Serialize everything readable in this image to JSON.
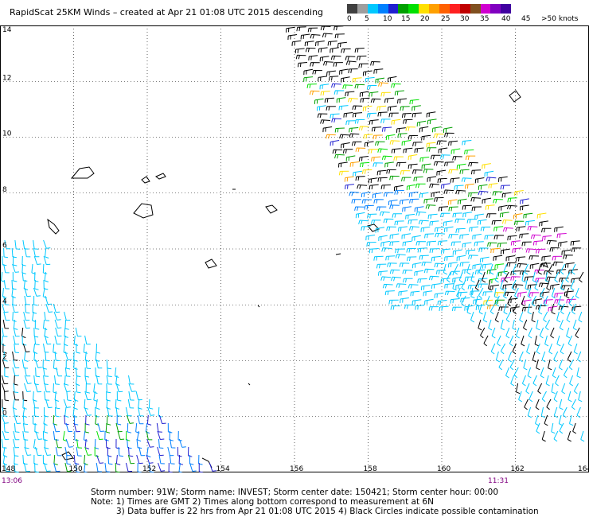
{
  "title": "RapidScat 25KM Winds – created at Apr 21 01:08 UTC 2015 descending",
  "legend": {
    "colors": [
      "#404040",
      "#9e9e9e",
      "#00c8ff",
      "#0080ff",
      "#2020d0",
      "#00a000",
      "#00e000",
      "#ffe000",
      "#ffa000",
      "#ff6000",
      "#ff2020",
      "#c00000",
      "#805020",
      "#d000d0",
      "#8000c0",
      "#4000a0"
    ],
    "labels": [
      "0",
      "5",
      "10",
      "15",
      "20",
      "25",
      "30",
      "35",
      "40",
      "45",
      ">50 knots"
    ]
  },
  "map": {
    "lat_labels": [
      "14",
      "12",
      "10",
      "8",
      "6",
      "4",
      "2",
      "0"
    ],
    "lon_labels": [
      "148",
      "150",
      "152",
      "154",
      "156",
      "158",
      "160",
      "162",
      "164"
    ],
    "lat_range": [
      -2,
      14
    ],
    "lon_range": [
      148,
      164
    ],
    "grid": true
  },
  "times": {
    "left": "13:06",
    "right": "11:31"
  },
  "notes": {
    "storm_line": "Storm number: 91W;  Storm name: INVEST;  Storm center date: 150421;  Storm center hour: 00:00",
    "note_line_1": "Note: 1) Times are GMT  2) Times along bottom correspond to measurement at 6N",
    "note_line_2": "3) Data buffer is 22 hrs from Apr 21 01:08 UTC 2015  4) Black Circles indicate possible contamination"
  }
}
